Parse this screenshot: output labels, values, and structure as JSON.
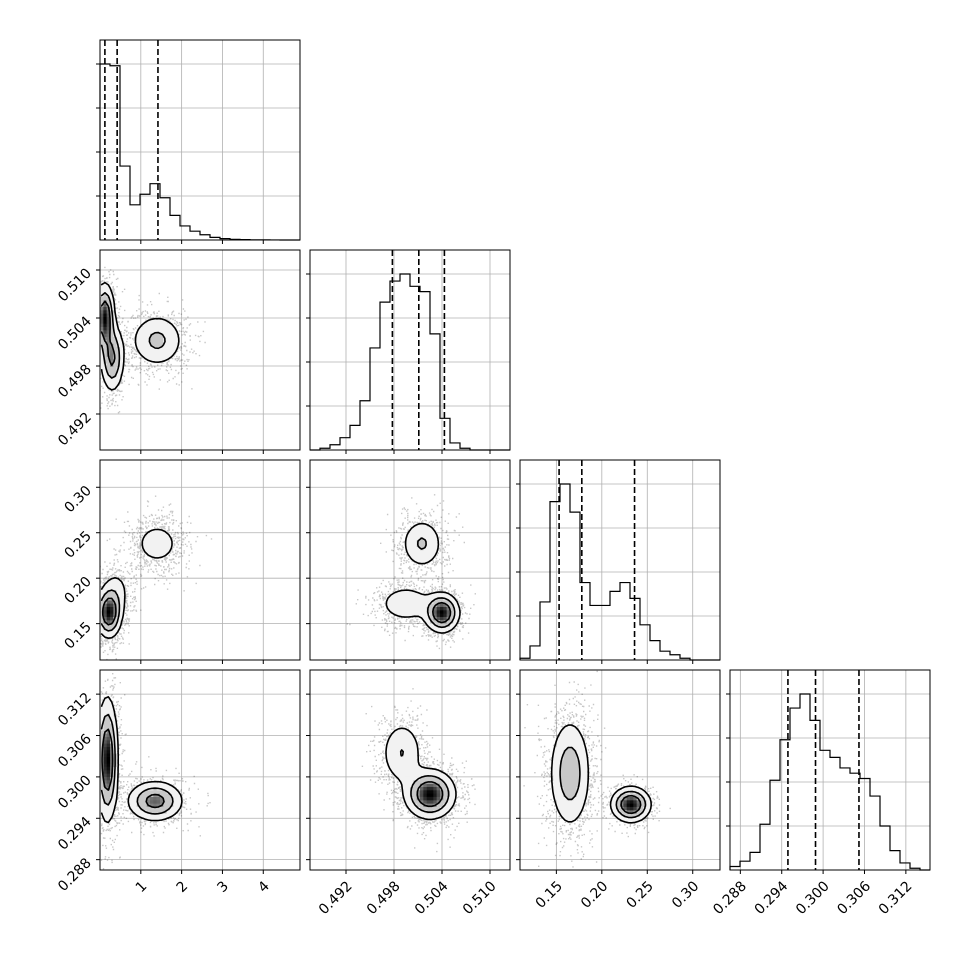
{
  "chart_data": {
    "type": "corner",
    "parameters": [
      {
        "range": [
          0.0,
          4.9
        ],
        "ticks": [
          1,
          2,
          3,
          4
        ],
        "quantiles": [
          0.12,
          0.42,
          1.42
        ]
      },
      {
        "range": [
          0.4875,
          0.5125
        ],
        "ticks": [
          0.492,
          0.498,
          0.504,
          0.51
        ],
        "quantiles": [
          0.4978,
          0.5011,
          0.5043
        ]
      },
      {
        "range": [
          0.11,
          0.33
        ],
        "ticks": [
          0.15,
          0.2,
          0.25,
          0.3
        ],
        "quantiles": [
          0.153,
          0.178,
          0.236
        ]
      },
      {
        "range": [
          0.2865,
          0.3155
        ],
        "ticks": [
          0.288,
          0.294,
          0.3,
          0.306,
          0.312
        ],
        "quantiles": [
          0.2949,
          0.2989,
          0.3052
        ]
      }
    ],
    "tick_labels": {
      "x": [
        [
          "1",
          "2",
          "3",
          "4"
        ],
        [
          "0.492",
          "0.498",
          "0.504",
          "0.510"
        ],
        [
          "0.15",
          "0.20",
          "0.25",
          "0.30"
        ],
        [
          "0.288",
          "0.294",
          "0.300",
          "0.306",
          "0.312"
        ]
      ],
      "y": [
        null,
        [
          "0.492",
          "0.498",
          "0.504",
          "0.510"
        ],
        [
          "0.15",
          "0.20",
          "0.25",
          "0.30"
        ],
        [
          "0.288",
          "0.294",
          "0.300",
          "0.306",
          "0.312"
        ]
      ]
    },
    "histograms": [
      {
        "bins": [
          0.0,
          0.245,
          0.49,
          0.735,
          0.98,
          1.225,
          1.47,
          1.715,
          1.96,
          2.205,
          2.45,
          2.695,
          2.94,
          3.185,
          3.43,
          3.675,
          3.92,
          4.165,
          4.41,
          4.655,
          4.9
        ],
        "counts": [
          100,
          99,
          42,
          20,
          26,
          32,
          24,
          14,
          8,
          5,
          3,
          1.5,
          0.8,
          0.4,
          0.2,
          0.1,
          0.05,
          0.02,
          0.01,
          0
        ]
      },
      {
        "bins": [
          0.4875,
          0.48875,
          0.49,
          0.49125,
          0.4925,
          0.49375,
          0.495,
          0.49625,
          0.4975,
          0.49875,
          0.5,
          0.50125,
          0.5025,
          0.50375,
          0.505,
          0.50625,
          0.5075,
          0.50875,
          0.51,
          0.51125,
          0.5125
        ],
        "counts": [
          0,
          1,
          3,
          7,
          14,
          28,
          58,
          84,
          96,
          100,
          93,
          90,
          66,
          18,
          4,
          1,
          0,
          0,
          0,
          0
        ]
      },
      {
        "bins": [
          0.11,
          0.121,
          0.132,
          0.143,
          0.154,
          0.165,
          0.176,
          0.187,
          0.198,
          0.209,
          0.22,
          0.231,
          0.242,
          0.253,
          0.264,
          0.275,
          0.286,
          0.297,
          0.308,
          0.319,
          0.33
        ],
        "counts": [
          1,
          8,
          33,
          90,
          100,
          84,
          44,
          31,
          31,
          39,
          44,
          35,
          20,
          11,
          5,
          3,
          1,
          0,
          0,
          0
        ]
      },
      {
        "bins": [
          0.2865,
          0.28795,
          0.2894,
          0.29085,
          0.2923,
          0.29375,
          0.2952,
          0.29665,
          0.2981,
          0.29955,
          0.301,
          0.30245,
          0.3039,
          0.30535,
          0.3068,
          0.30825,
          0.3097,
          0.31115,
          0.3126,
          0.31405,
          0.3155
        ],
        "counts": [
          2,
          5,
          10,
          26,
          51,
          74,
          92,
          100,
          85,
          68,
          64,
          58,
          55,
          52,
          42,
          25,
          11,
          4,
          1,
          0
        ]
      }
    ],
    "pair_modes": {
      "1,0": [
        {
          "mx": 0.12,
          "my": 0.504,
          "sx": 0.12,
          "sy": 0.0022,
          "w": 0.35
        },
        {
          "mx": 0.3,
          "my": 0.499,
          "sx": 0.15,
          "sy": 0.0022,
          "w": 0.3
        },
        {
          "mx": 1.4,
          "my": 0.5012,
          "sx": 0.35,
          "sy": 0.0018,
          "w": 0.35
        }
      ],
      "2,0": [
        {
          "mx": 0.22,
          "my": 0.162,
          "sx": 0.16,
          "sy": 0.014,
          "w": 0.55
        },
        {
          "mx": 0.4,
          "my": 0.185,
          "sx": 0.2,
          "sy": 0.015,
          "w": 0.15
        },
        {
          "mx": 1.4,
          "my": 0.238,
          "sx": 0.35,
          "sy": 0.015,
          "w": 0.3
        }
      ],
      "3,0": [
        {
          "mx": 0.18,
          "my": 0.3025,
          "sx": 0.13,
          "sy": 0.0045,
          "w": 0.6
        },
        {
          "mx": 1.35,
          "my": 0.2965,
          "sx": 0.35,
          "sy": 0.0015,
          "w": 0.4
        }
      ],
      "2,1": [
        {
          "mx": 0.5015,
          "my": 0.238,
          "sx": 0.0014,
          "sy": 0.015,
          "w": 0.3
        },
        {
          "mx": 0.4995,
          "my": 0.172,
          "sx": 0.002,
          "sy": 0.012,
          "w": 0.25
        },
        {
          "mx": 0.504,
          "my": 0.162,
          "sx": 0.0011,
          "sy": 0.011,
          "w": 0.45
        }
      ],
      "3,1": [
        {
          "mx": 0.499,
          "my": 0.3035,
          "sx": 0.0014,
          "sy": 0.0025,
          "w": 0.3
        },
        {
          "mx": 0.5025,
          "my": 0.2975,
          "sx": 0.0016,
          "sy": 0.0018,
          "w": 0.7
        }
      ],
      "3,2": [
        {
          "mx": 0.165,
          "my": 0.3005,
          "sx": 0.012,
          "sy": 0.0042,
          "w": 0.65
        },
        {
          "mx": 0.232,
          "my": 0.296,
          "sx": 0.011,
          "sy": 0.0013,
          "w": 0.35
        }
      ]
    },
    "grid": true,
    "legend": "none"
  }
}
